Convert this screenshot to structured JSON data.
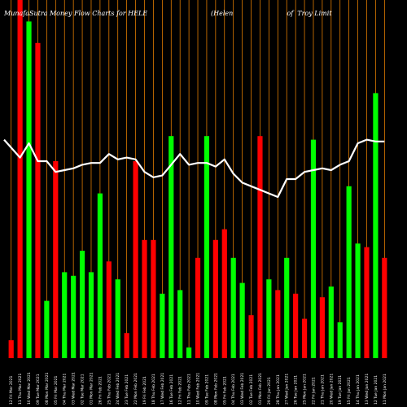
{
  "chart_data": {
    "type": "bar",
    "title": "MunafaSutra  Money Flow  Charts for HELE",
    "subtitle": "(Helen                          of  Troy Limit",
    "ylim": [
      0,
      100
    ],
    "grid": "vertical",
    "colors": {
      "up": "#00ff00",
      "down": "#ff0000",
      "grid": "#ff8c00",
      "line": "#ffffff",
      "background": "#000000"
    },
    "categories": [
      "12 Fri Mar 2021",
      "11 Thu Mar 2021",
      "10 Wed Mar 2021",
      "09 Tue Mar 2021",
      "08 Mon Mar 2021",
      "05 Fri Mar 2021",
      "04 Thu Mar 2021",
      "03 Wed Mar 2021",
      "02 Tue Mar 2021",
      "01 Mon Mar 2021",
      "26 Fri Feb 2021",
      "25 Thu Feb 2021",
      "24 Wed Feb 2021",
      "23 Tue Feb 2021",
      "22 Mon Feb 2021",
      "19 Fri Feb 2021",
      "18 Thu Feb 2021",
      "17 Wed Feb 2021",
      "16 Tue Feb 2021",
      "12 Fri Feb 2021",
      "11 Thu Feb 2021",
      "10 Wed Feb 2021",
      "09 Tue Feb 2021",
      "08 Mon Feb 2021",
      "05 Fri Feb 2021",
      "04 Thu Feb 2021",
      "03 Wed Feb 2021",
      "02 Tue Feb 2021",
      "01 Mon Feb 2021",
      "29 Fri Jan 2021",
      "28 Thu Jan 2021",
      "27 Wed Jan 2021",
      "26 Tue Jan 2021",
      "25 Mon Jan 2021",
      "22 Fri Jan 2021",
      "21 Thu Jan 2021",
      "20 Wed Jan 2021",
      "19 Tue Jan 2021",
      "15 Fri Jan 2021",
      "14 Thu Jan 2021",
      "13 Wed Jan 2021",
      "12 Tue Jan 2021",
      "11 Mon Jan 2021"
    ],
    "series": [
      {
        "values": [
          5,
          100,
          94,
          88,
          16,
          55,
          24,
          23,
          30,
          24,
          46,
          27,
          22,
          7,
          55,
          33,
          33,
          18,
          62,
          19,
          3,
          28,
          62,
          33,
          36,
          28,
          21,
          12,
          62,
          22,
          19,
          28,
          18,
          11,
          61,
          17,
          20,
          10,
          48,
          32,
          31,
          74,
          28
        ],
        "directions": [
          "down",
          "down",
          "up",
          "down",
          "up",
          "down",
          "up",
          "up",
          "up",
          "up",
          "up",
          "down",
          "up",
          "down",
          "down",
          "down",
          "down",
          "up",
          "up",
          "up",
          "up",
          "down",
          "up",
          "down",
          "down",
          "up",
          "up",
          "down",
          "down",
          "up",
          "down",
          "up",
          "down",
          "down",
          "up",
          "down",
          "up",
          "up",
          "up",
          "up",
          "down",
          "up",
          "down"
        ]
      },
      {
        "values": [
          61,
          56,
          60,
          55,
          55,
          52,
          52.5,
          53,
          54,
          54.5,
          54.5,
          57,
          55.5,
          56,
          55.5,
          52,
          50.5,
          51,
          54,
          57,
          54,
          54.5,
          54.5,
          53.5,
          55.5,
          51.5,
          49,
          48,
          47,
          46,
          45,
          50,
          50,
          52,
          52.5,
          53,
          52.5,
          54,
          55,
          60,
          61,
          60.5,
          60.5
        ]
      }
    ]
  }
}
